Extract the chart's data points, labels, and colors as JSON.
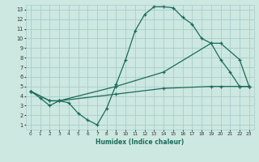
{
  "xlabel": "Humidex (Indice chaleur)",
  "bg_color": "#cce8e0",
  "grid_color": "#aacccc",
  "line_color": "#1a6b5a",
  "xlim": [
    -0.5,
    23.5
  ],
  "ylim": [
    0.5,
    13.5
  ],
  "xticks": [
    0,
    1,
    2,
    3,
    4,
    5,
    6,
    7,
    8,
    9,
    10,
    11,
    12,
    13,
    14,
    15,
    16,
    17,
    18,
    19,
    20,
    21,
    22,
    23
  ],
  "yticks": [
    1,
    2,
    3,
    4,
    5,
    6,
    7,
    8,
    9,
    10,
    11,
    12,
    13
  ],
  "line1_x": [
    0,
    1,
    2,
    3,
    4,
    5,
    6,
    7,
    8,
    9,
    10,
    11,
    12,
    13,
    14,
    15,
    16,
    17,
    18,
    19,
    20,
    21,
    22,
    23
  ],
  "line1_y": [
    4.5,
    3.8,
    3.0,
    3.5,
    3.3,
    2.2,
    1.5,
    1.0,
    2.7,
    5.2,
    7.8,
    10.8,
    12.5,
    13.3,
    13.3,
    13.2,
    12.2,
    11.5,
    10.0,
    9.5,
    7.8,
    6.5,
    5.0,
    5.0
  ],
  "line2_x": [
    0,
    2,
    3,
    9,
    14,
    19,
    20,
    22,
    23
  ],
  "line2_y": [
    4.5,
    3.5,
    3.5,
    5.0,
    6.5,
    9.5,
    9.5,
    7.8,
    5.0
  ],
  "line3_x": [
    0,
    2,
    3,
    9,
    14,
    19,
    20,
    22,
    23
  ],
  "line3_y": [
    4.5,
    3.5,
    3.5,
    4.2,
    4.8,
    5.0,
    5.0,
    5.0,
    5.0
  ]
}
